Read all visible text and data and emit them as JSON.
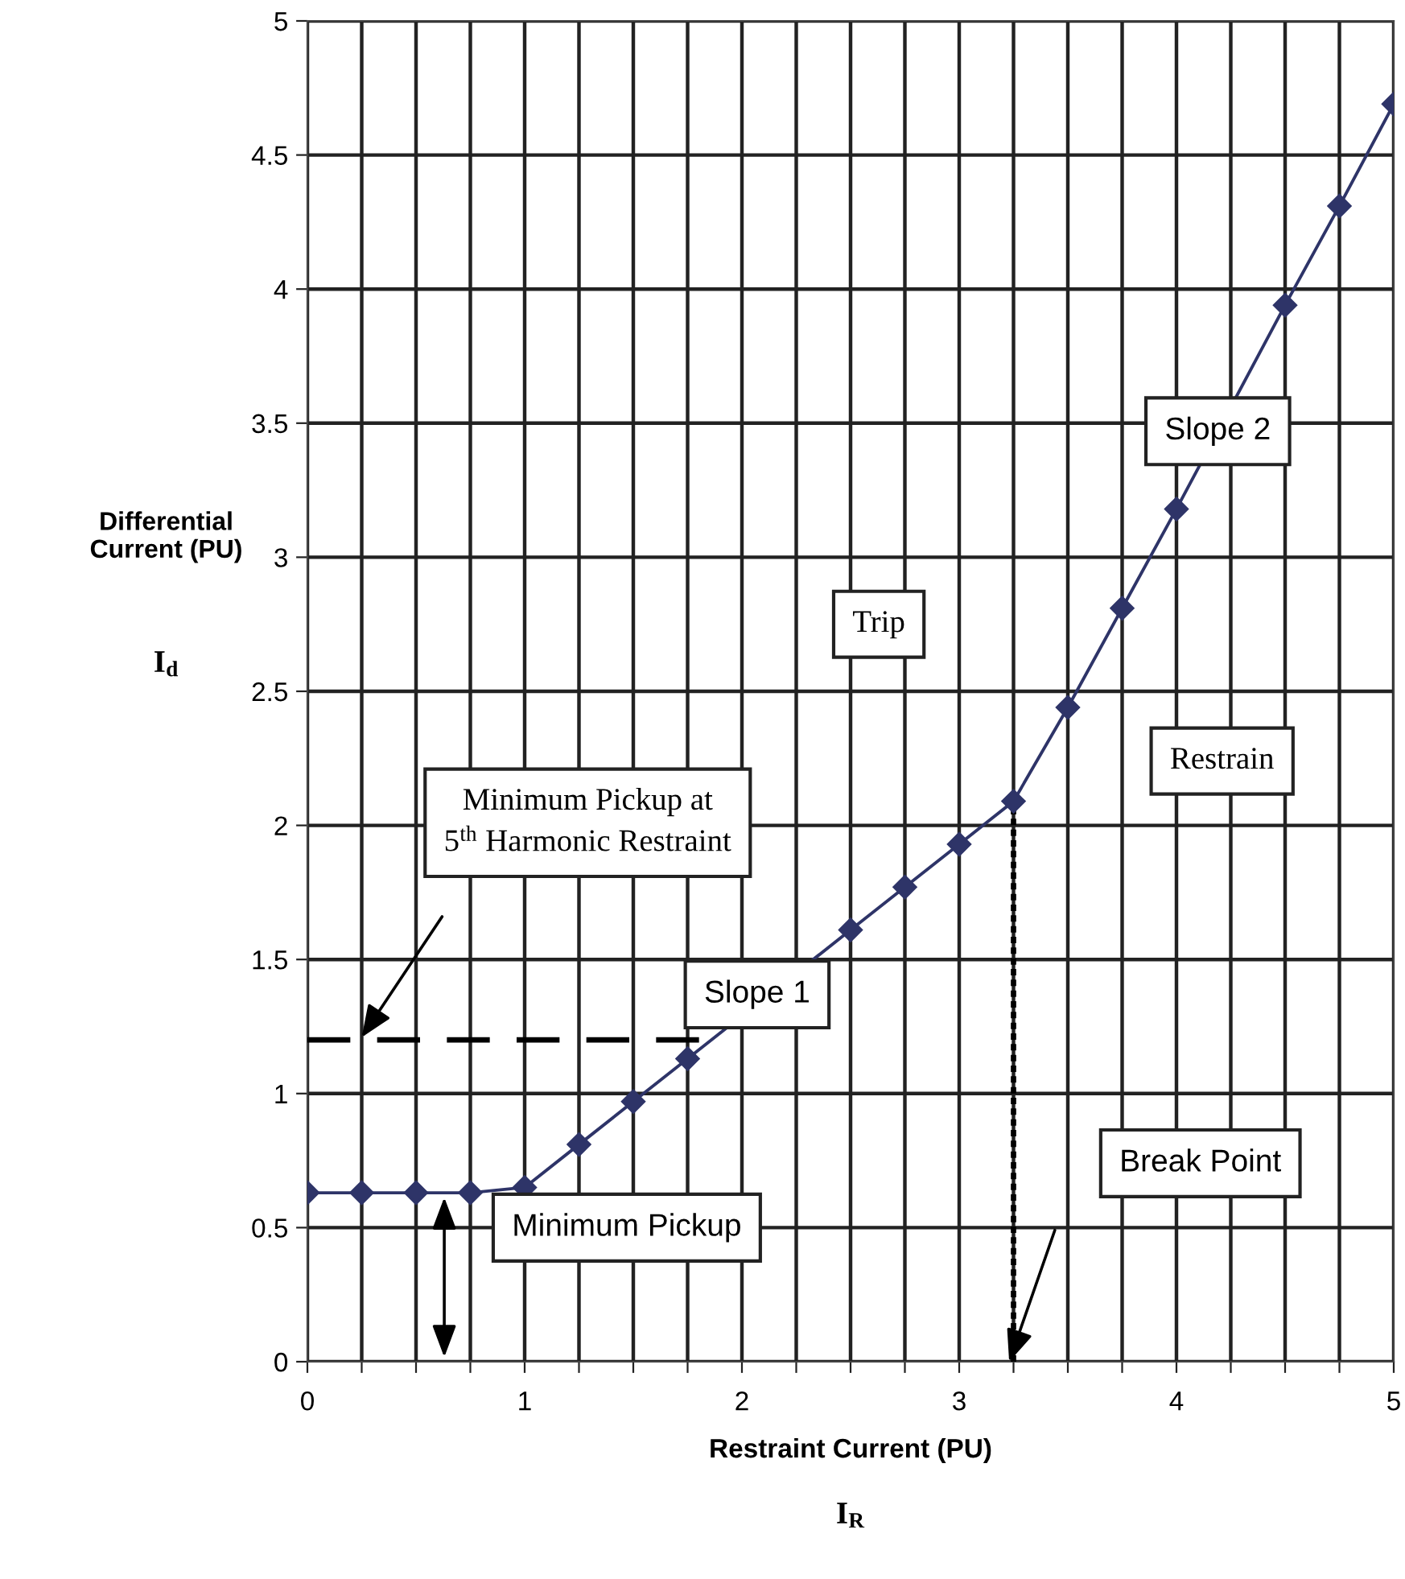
{
  "chart_data": {
    "type": "line",
    "xlabel": "Restraint Current (PU)",
    "ylabel": "Differential\nCurrent (PU)",
    "series": [
      {
        "color": "#2e3468",
        "marker": "diamond",
        "line_style": "solid",
        "x": [
          0,
          0.25,
          0.5,
          0.75,
          1,
          1.25,
          1.5,
          1.75,
          2,
          2.25,
          2.5,
          2.75,
          3,
          3.25,
          3.5,
          3.75,
          4,
          4.25,
          4.5,
          4.75,
          5
        ],
        "values": [
          0.63,
          0.63,
          0.63,
          0.63,
          0.65,
          0.81,
          0.97,
          1.13,
          null,
          null,
          1.61,
          1.77,
          1.93,
          2.09,
          2.44,
          2.81,
          3.18,
          null,
          3.94,
          4.31,
          4.69
        ]
      },
      {
        "color": "#000000",
        "marker": "none",
        "line_style": "dashed",
        "x": [
          0,
          1.9
        ],
        "values": [
          1.2,
          1.2
        ]
      },
      {
        "color": "#000000",
        "marker": "none",
        "line_style": "dotted",
        "x": [
          3.25,
          3.25
        ],
        "values": [
          0,
          2.09
        ]
      }
    ],
    "annotations": [
      "I$_{d}$",
      "I$_{R}$",
      "Trip",
      "Restrain",
      "Slope 2",
      "Slope 1",
      "Minimum Pickup at\n5$^{th}$ Harmonic Restraint",
      {
        "text": "Minimum Pickup",
        "x": 0.63,
        "y": 0.63
      },
      "Break Point"
    ],
    "xlim": [
      0,
      5
    ],
    "ylim": [
      0,
      5
    ],
    "xticks": [
      0,
      {
        "value": 0.25,
        "label": null
      },
      {
        "value": 0.5,
        "label": null
      },
      {
        "value": 0.75,
        "label": null
      },
      1,
      {
        "value": 1.25,
        "label": null
      },
      {
        "value": 1.5,
        "label": null
      },
      {
        "value": 1.75,
        "label": null
      },
      2,
      {
        "value": 2.25,
        "label": null
      },
      {
        "value": 2.5,
        "label": null
      },
      {
        "value": 2.75,
        "label": null
      },
      3,
      {
        "value": 3.25,
        "label": null
      },
      {
        "value": 3.5,
        "label": null
      },
      {
        "value": 3.75,
        "label": null
      },
      4,
      {
        "value": 4.25,
        "label": null
      },
      {
        "value": 4.5,
        "label": null
      },
      {
        "value": 4.75,
        "label": null
      },
      5
    ],
    "yticks": [
      0,
      0.5,
      1,
      1.5,
      2,
      2.5,
      3,
      3.5,
      4,
      4.5,
      5
    ],
    "grid": true,
    "legend": false
  }
}
